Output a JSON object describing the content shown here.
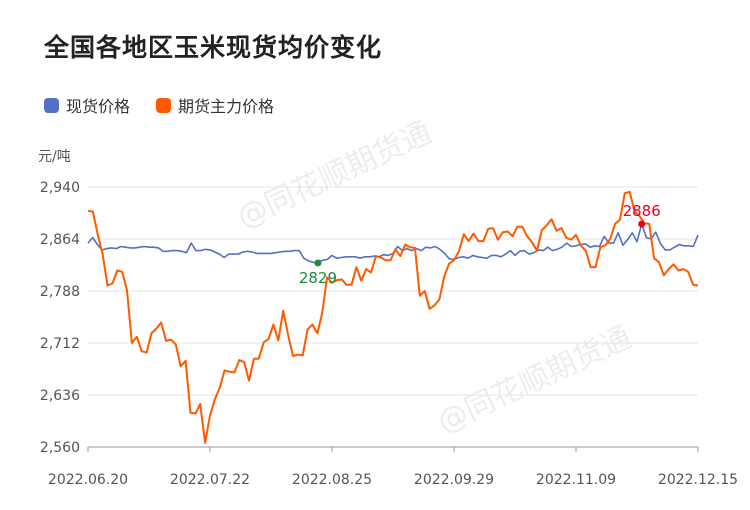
{
  "title": "全国各地区玉米现货均价变化",
  "unit": "元/吨",
  "watermark": "@同花顺期货通",
  "colors": {
    "spot": "#5470c6",
    "futures": "#ff5a00",
    "grid": "#e6e6e6",
    "axis": "#555555",
    "low_point": "#1e8a3c",
    "high_point": "#e8001c"
  },
  "chart_data": {
    "type": "line",
    "x_labels": [
      "2022.06.20",
      "2022.07.22",
      "2022.08.25",
      "2022.09.29",
      "2022.11.09",
      "2022.12.15"
    ],
    "ylim": [
      2560,
      2940
    ],
    "y_ticks": [
      2940,
      2864,
      2788,
      2712,
      2636,
      2560
    ],
    "y_tick_labels": [
      "2,940",
      "2,864",
      "2,788",
      "2,712",
      "2,636",
      "2,560"
    ],
    "grid": true,
    "legend": "top-left",
    "series": [
      {
        "name": "现货价格",
        "values": [
          2858,
          2866,
          2856,
          2848,
          2850,
          2851,
          2850,
          2853,
          2852,
          2851,
          2851,
          2852,
          2853,
          2852,
          2852,
          2851,
          2846,
          2846,
          2847,
          2847,
          2846,
          2844,
          2858,
          2847,
          2847,
          2849,
          2848,
          2845,
          2842,
          2837,
          2842,
          2842,
          2842,
          2845,
          2846,
          2845,
          2843,
          2843,
          2843,
          2843,
          2844,
          2845,
          2846,
          2846,
          2847,
          2847,
          2836,
          2832,
          2830,
          2829,
          2833,
          2834,
          2840,
          2836,
          2837,
          2838,
          2838,
          2838,
          2836,
          2838,
          2838,
          2839,
          2838,
          2841,
          2840,
          2843,
          2853,
          2847,
          2850,
          2847,
          2850,
          2847,
          2852,
          2851,
          2853,
          2849,
          2843,
          2835,
          2834,
          2837,
          2838,
          2836,
          2840,
          2838,
          2837,
          2836,
          2840,
          2840,
          2838,
          2842,
          2847,
          2840,
          2846,
          2847,
          2842,
          2844,
          2848,
          2847,
          2852,
          2847,
          2849,
          2852,
          2858,
          2853,
          2854,
          2856,
          2857,
          2852,
          2854,
          2853,
          2868,
          2858,
          2858,
          2873,
          2855,
          2863,
          2873,
          2860,
          2886,
          2866,
          2864,
          2874,
          2857,
          2848,
          2848,
          2852,
          2856,
          2854,
          2854,
          2853,
          2870
        ]
      },
      {
        "name": "期货主力价格",
        "values": [
          2905,
          2904,
          2870,
          2842,
          2796,
          2799,
          2818,
          2816,
          2789,
          2712,
          2721,
          2700,
          2698,
          2726,
          2733,
          2742,
          2715,
          2717,
          2710,
          2678,
          2686,
          2610,
          2609,
          2623,
          2566,
          2606,
          2630,
          2647,
          2672,
          2670,
          2669,
          2687,
          2684,
          2657,
          2689,
          2689,
          2713,
          2718,
          2739,
          2716,
          2759,
          2724,
          2693,
          2695,
          2694,
          2732,
          2739,
          2726,
          2756,
          2808,
          2800,
          2804,
          2805,
          2797,
          2797,
          2823,
          2803,
          2820,
          2815,
          2839,
          2837,
          2833,
          2833,
          2849,
          2839,
          2856,
          2852,
          2851,
          2781,
          2788,
          2762,
          2767,
          2776,
          2809,
          2828,
          2833,
          2846,
          2871,
          2861,
          2872,
          2861,
          2861,
          2879,
          2880,
          2863,
          2874,
          2875,
          2868,
          2882,
          2882,
          2868,
          2859,
          2847,
          2877,
          2884,
          2893,
          2876,
          2880,
          2866,
          2863,
          2870,
          2854,
          2847,
          2823,
          2823,
          2852,
          2855,
          2864,
          2886,
          2892,
          2931,
          2933,
          2904,
          2898,
          2887,
          2886,
          2836,
          2830,
          2811,
          2820,
          2827,
          2818,
          2820,
          2816,
          2797,
          2796
        ]
      }
    ],
    "annotations": [
      {
        "label": "2829",
        "series": "现货价格",
        "value": 2829
      },
      {
        "label": "2886",
        "series": "现货价格",
        "value": 2886
      }
    ]
  }
}
